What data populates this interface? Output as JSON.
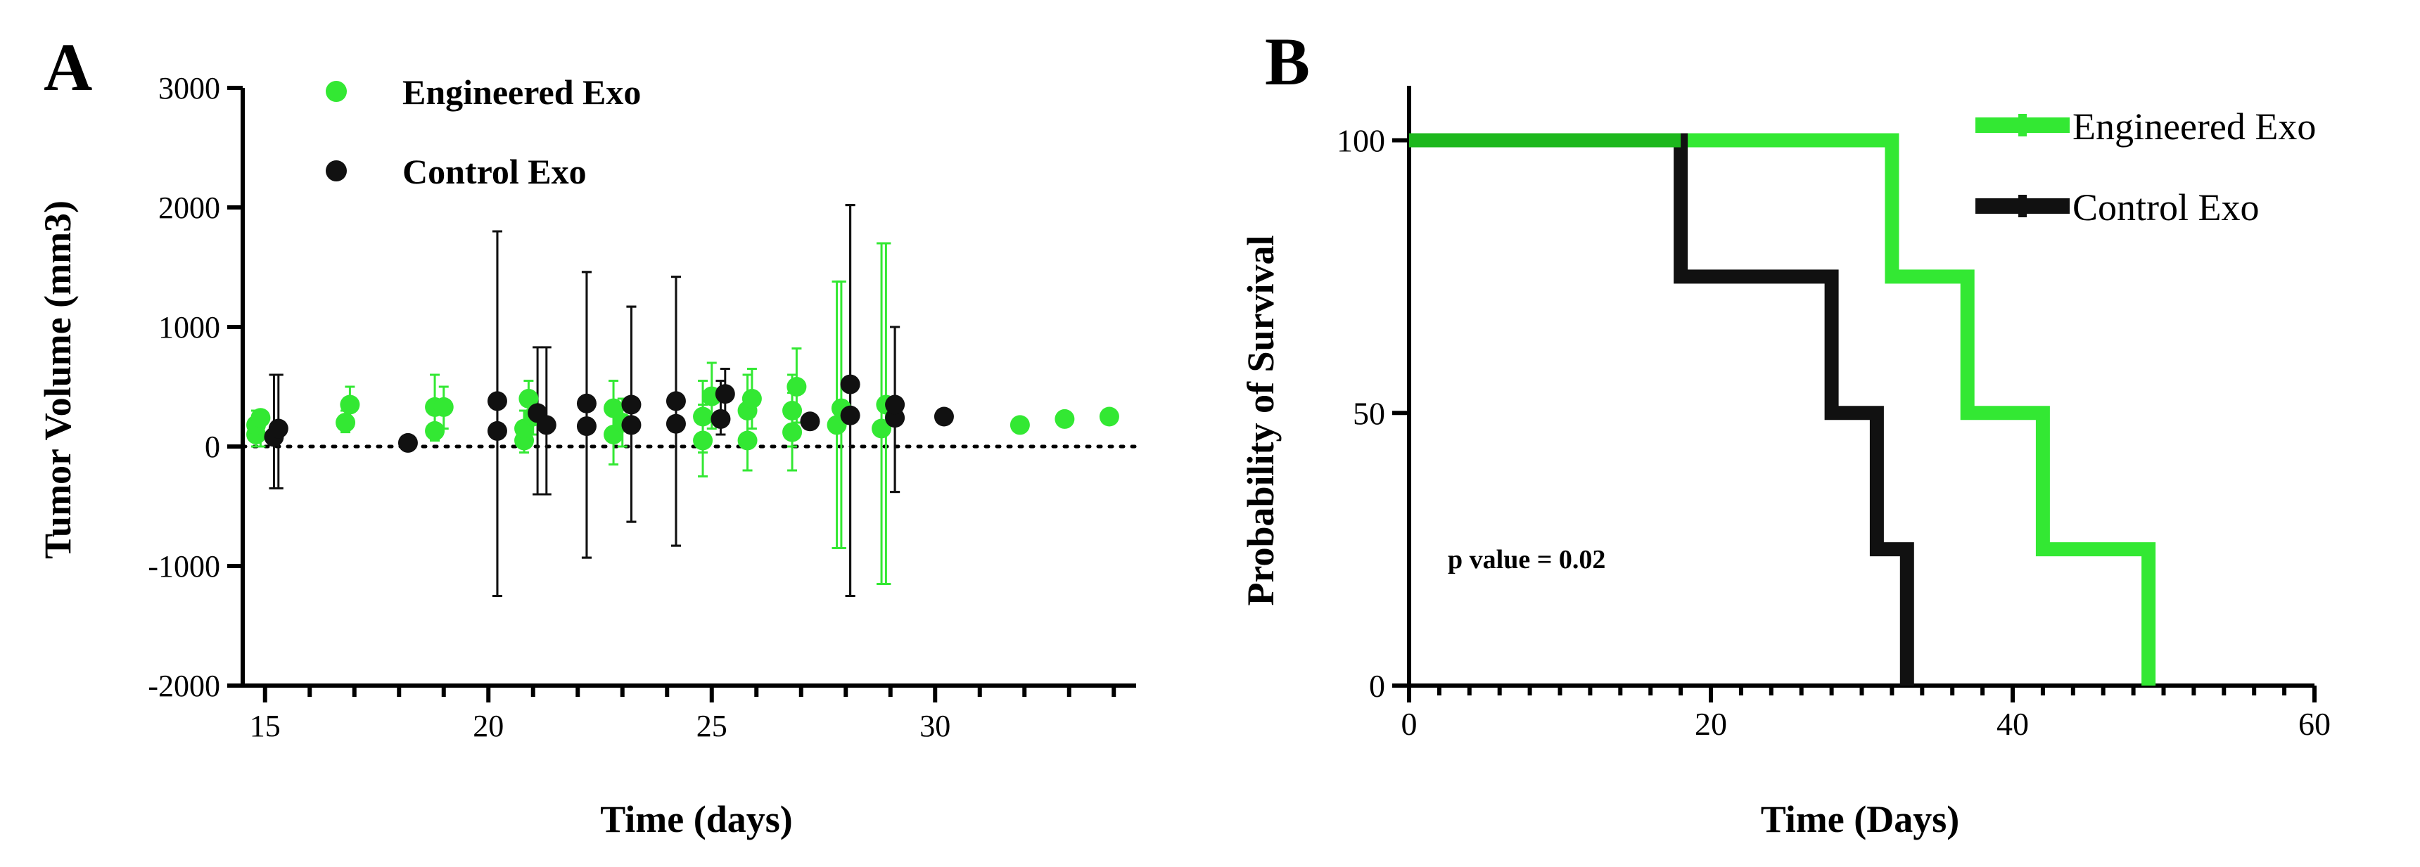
{
  "colors": {
    "engineered": "#33e833",
    "control": "#111111",
    "axis": "#000000"
  },
  "chart_data": [
    {
      "panel": "A",
      "type": "scatter",
      "xlabel": "Time (days)",
      "ylabel": "Tumor Volume (mm3)",
      "xlim": [
        14.5,
        34.5
      ],
      "ylim": [
        -2000,
        3000
      ],
      "xticks": [
        15,
        20,
        25,
        30
      ],
      "yticks": [
        3000,
        2000,
        1000,
        0,
        -1000,
        -2000
      ],
      "reference_line_y": 0,
      "legend_position": "top",
      "series": [
        {
          "name": "Engineered Exo",
          "color_key": "engineered",
          "points": [
            {
              "x": 14.8,
              "y": 100,
              "lo": 0,
              "hi": 300
            },
            {
              "x": 14.8,
              "y": 180,
              "lo": 0,
              "hi": 300
            },
            {
              "x": 14.9,
              "y": 240,
              "lo": 0,
              "hi": 300
            },
            {
              "x": 16.8,
              "y": 200,
              "lo": 120,
              "hi": 300
            },
            {
              "x": 16.9,
              "y": 350,
              "lo": 200,
              "hi": 500
            },
            {
              "x": 18.8,
              "y": 130,
              "lo": 50,
              "hi": 300
            },
            {
              "x": 18.8,
              "y": 330,
              "lo": 150,
              "hi": 600
            },
            {
              "x": 19.0,
              "y": 330,
              "lo": 150,
              "hi": 500
            },
            {
              "x": 20.8,
              "y": 50,
              "lo": -50,
              "hi": 200
            },
            {
              "x": 20.8,
              "y": 150,
              "lo": 0,
              "hi": 300
            },
            {
              "x": 20.9,
              "y": 400,
              "lo": 250,
              "hi": 550
            },
            {
              "x": 21.0,
              "y": 250,
              "lo": 100,
              "hi": 400
            },
            {
              "x": 22.8,
              "y": 100,
              "lo": -150,
              "hi": 350
            },
            {
              "x": 22.8,
              "y": 320,
              "lo": 100,
              "hi": 550
            },
            {
              "x": 23.0,
              "y": 200,
              "lo": 0,
              "hi": 400
            },
            {
              "x": 24.8,
              "y": 50,
              "lo": -250,
              "hi": 350
            },
            {
              "x": 24.8,
              "y": 250,
              "lo": -50,
              "hi": 550
            },
            {
              "x": 25.0,
              "y": 420,
              "lo": 150,
              "hi": 700
            },
            {
              "x": 25.8,
              "y": 50,
              "lo": -200,
              "hi": 300
            },
            {
              "x": 25.8,
              "y": 300,
              "lo": 0,
              "hi": 600
            },
            {
              "x": 25.9,
              "y": 400,
              "lo": 150,
              "hi": 650
            },
            {
              "x": 26.8,
              "y": 120,
              "lo": -200,
              "hi": 450
            },
            {
              "x": 26.8,
              "y": 300,
              "lo": 0,
              "hi": 600
            },
            {
              "x": 26.9,
              "y": 500,
              "lo": 200,
              "hi": 820
            },
            {
              "x": 27.8,
              "y": 180,
              "lo": -850,
              "hi": 1380
            },
            {
              "x": 27.9,
              "y": 320,
              "lo": -850,
              "hi": 1380
            },
            {
              "x": 28.8,
              "y": 150,
              "lo": -1150,
              "hi": 1700
            },
            {
              "x": 28.9,
              "y": 350,
              "lo": -1150,
              "hi": 1700
            },
            {
              "x": 31.9,
              "y": 180,
              "lo": 150,
              "hi": 210
            },
            {
              "x": 32.9,
              "y": 230,
              "lo": 200,
              "hi": 260
            },
            {
              "x": 33.9,
              "y": 250,
              "lo": 220,
              "hi": 280
            }
          ]
        },
        {
          "name": "Control Exo",
          "color_key": "control",
          "points": [
            {
              "x": 15.2,
              "y": 80,
              "lo": -350,
              "hi": 600
            },
            {
              "x": 15.3,
              "y": 150,
              "lo": -350,
              "hi": 600
            },
            {
              "x": 18.2,
              "y": 30,
              "lo": 20,
              "hi": 50
            },
            {
              "x": 20.2,
              "y": 130,
              "lo": -1250,
              "hi": 1800
            },
            {
              "x": 20.2,
              "y": 380,
              "lo": -1250,
              "hi": 1800
            },
            {
              "x": 21.1,
              "y": 280,
              "lo": -400,
              "hi": 830
            },
            {
              "x": 21.3,
              "y": 180,
              "lo": -400,
              "hi": 830
            },
            {
              "x": 22.2,
              "y": 170,
              "lo": -930,
              "hi": 1460
            },
            {
              "x": 22.2,
              "y": 360,
              "lo": -930,
              "hi": 1460
            },
            {
              "x": 23.2,
              "y": 180,
              "lo": -630,
              "hi": 1170
            },
            {
              "x": 23.2,
              "y": 350,
              "lo": -630,
              "hi": 1170
            },
            {
              "x": 24.2,
              "y": 190,
              "lo": -830,
              "hi": 1420
            },
            {
              "x": 24.2,
              "y": 380,
              "lo": -830,
              "hi": 1420
            },
            {
              "x": 25.2,
              "y": 230,
              "lo": 100,
              "hi": 550
            },
            {
              "x": 25.3,
              "y": 440,
              "lo": 250,
              "hi": 650
            },
            {
              "x": 27.2,
              "y": 210,
              "lo": 190,
              "hi": 230
            },
            {
              "x": 28.1,
              "y": 260,
              "lo": -1250,
              "hi": 2020
            },
            {
              "x": 28.1,
              "y": 520,
              "lo": -1250,
              "hi": 2020
            },
            {
              "x": 29.1,
              "y": 240,
              "lo": -380,
              "hi": 1000
            },
            {
              "x": 29.1,
              "y": 350,
              "lo": -380,
              "hi": 1000
            },
            {
              "x": 30.2,
              "y": 250,
              "lo": 230,
              "hi": 270
            }
          ]
        }
      ]
    },
    {
      "panel": "B",
      "type": "line",
      "subtype": "step",
      "xlabel": "Time (Days)",
      "ylabel": "Probability of Survival",
      "xlim": [
        0,
        60
      ],
      "ylim": [
        0,
        110
      ],
      "xticks": [
        0,
        20,
        40,
        60
      ],
      "yticks": [
        100,
        50,
        0
      ],
      "legend_position": "top-right",
      "annotation": "p value = 0.02",
      "series": [
        {
          "name": "Engineered Exo",
          "color_key": "engineered",
          "steps": [
            {
              "x": 0,
              "y": 100
            },
            {
              "x": 32,
              "y": 100
            },
            {
              "x": 32,
              "y": 75
            },
            {
              "x": 37,
              "y": 75
            },
            {
              "x": 37,
              "y": 50
            },
            {
              "x": 42,
              "y": 50
            },
            {
              "x": 42,
              "y": 25
            },
            {
              "x": 49,
              "y": 25
            },
            {
              "x": 49,
              "y": 0
            }
          ]
        },
        {
          "name": "Control Exo",
          "color_key": "control",
          "steps": [
            {
              "x": 0,
              "y": 100
            },
            {
              "x": 18,
              "y": 100
            },
            {
              "x": 18,
              "y": 75
            },
            {
              "x": 28,
              "y": 75
            },
            {
              "x": 28,
              "y": 50
            },
            {
              "x": 31,
              "y": 50
            },
            {
              "x": 31,
              "y": 25
            },
            {
              "x": 33,
              "y": 25
            },
            {
              "x": 33,
              "y": 0
            }
          ]
        }
      ]
    }
  ]
}
